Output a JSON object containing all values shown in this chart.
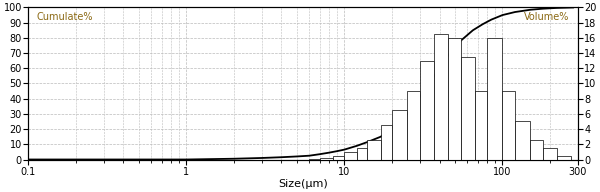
{
  "xlabel": "Size(μm)",
  "ylabel_left": "Cumulate%",
  "ylabel_right": "Volume%",
  "xlim_log": [
    0.1,
    300
  ],
  "ylim_left": [
    0,
    100
  ],
  "ylim_right": [
    0,
    20
  ],
  "yticks_left": [
    0,
    10,
    20,
    30,
    40,
    50,
    60,
    70,
    80,
    90,
    100
  ],
  "yticks_right": [
    0,
    2,
    4,
    6,
    8,
    10,
    12,
    14,
    16,
    18,
    20
  ],
  "bar_edges": [
    5.0,
    6.0,
    7.0,
    8.5,
    10.0,
    12.0,
    14.0,
    17.0,
    20.0,
    25.0,
    30.0,
    37.0,
    45.0,
    55.0,
    67.0,
    80.0,
    100.0,
    120.0,
    150.0,
    180.0,
    220.0,
    270.0
  ],
  "bar_heights": [
    0.0,
    0.1,
    0.2,
    0.5,
    1.0,
    1.5,
    2.5,
    4.5,
    6.5,
    9.0,
    13.0,
    16.5,
    16.0,
    13.5,
    9.0,
    16.0,
    9.0,
    5.0,
    2.5,
    1.5,
    0.5
  ],
  "cumulate_x": [
    0.1,
    0.3,
    0.5,
    1.0,
    2.0,
    3.0,
    4.0,
    5.0,
    6.0,
    7.0,
    8.0,
    9.0,
    10.0,
    12.0,
    14.0,
    17.0,
    20.0,
    25.0,
    30.0,
    37.0,
    45.0,
    55.0,
    65.0,
    75.0,
    85.0,
    100.0,
    120.0,
    150.0,
    180.0,
    220.0,
    280.0
  ],
  "cumulate_y": [
    0,
    0,
    0,
    0,
    0.5,
    1.0,
    1.5,
    2.0,
    2.5,
    3.5,
    4.5,
    5.5,
    6.5,
    9.0,
    11.5,
    15.0,
    21.0,
    30.0,
    41.0,
    55.0,
    68.0,
    78.5,
    85.0,
    89.0,
    92.0,
    95.0,
    97.0,
    98.5,
    99.2,
    99.7,
    100.0
  ],
  "bar_color": "#ffffff",
  "bar_edge_color": "#000000",
  "line_color": "#000000",
  "grid_color": "#bbbbbb",
  "background_color": "#ffffff",
  "spine_color": "#000000",
  "tick_color": "#000000",
  "label_color": "#000000",
  "annot_color": "#8B6914",
  "font_size": 7,
  "xlabel_font_size": 8
}
